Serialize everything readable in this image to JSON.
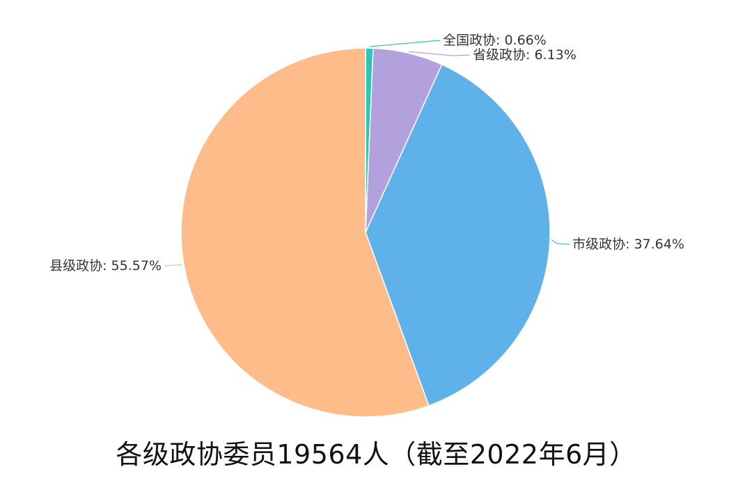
{
  "chart_data": {
    "type": "pie",
    "title": "各级政协委员19564人（截至2022年6月）",
    "slices": [
      {
        "label": "全国政协: 0.66%",
        "value": 0.66,
        "color": "#2ec4b6"
      },
      {
        "label": "省级政协: 6.13%",
        "value": 6.13,
        "color": "#b3a1dd"
      },
      {
        "label": "市级政协: 37.64%",
        "value": 37.64,
        "color": "#5eb1e9"
      },
      {
        "label": "县级政协: 55.57%",
        "value": 55.57,
        "color": "#fdbc89"
      }
    ],
    "start_angle": "12 o'clock",
    "direction": "clockwise",
    "legend": "none"
  }
}
